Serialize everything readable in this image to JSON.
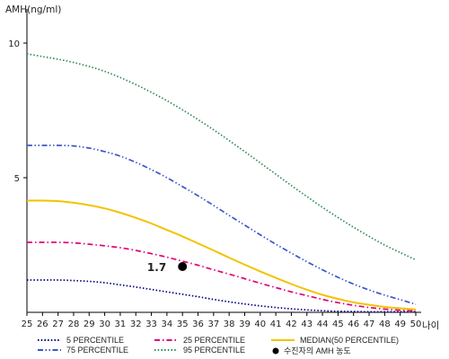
{
  "chart_data": {
    "type": "line",
    "title": "",
    "ylabel": "AMH(ng/ml)",
    "xlabel": "나이",
    "x": [
      25,
      26,
      27,
      28,
      29,
      30,
      31,
      32,
      33,
      34,
      35,
      36,
      37,
      38,
      39,
      40,
      41,
      42,
      43,
      44,
      45,
      46,
      47,
      48,
      49,
      50
    ],
    "xlim": [
      25,
      50
    ],
    "ylim": [
      0,
      11
    ],
    "yticks": [
      5,
      10
    ],
    "grid": false,
    "series": [
      {
        "name": "5 PERCENTILE",
        "color": "#000080",
        "dash": "dotted",
        "values": [
          1.2,
          1.2,
          1.2,
          1.18,
          1.15,
          1.1,
          1.02,
          0.94,
          0.85,
          0.76,
          0.67,
          0.58,
          0.48,
          0.39,
          0.31,
          0.24,
          0.18,
          0.13,
          0.09,
          0.06,
          0.04,
          0.03,
          0.02,
          0.02,
          0.02,
          0.02
        ]
      },
      {
        "name": "25 PERCENTILE",
        "color": "#e0007a",
        "dash": "dashdot",
        "values": [
          2.6,
          2.6,
          2.6,
          2.58,
          2.53,
          2.47,
          2.4,
          2.3,
          2.18,
          2.05,
          1.9,
          1.75,
          1.58,
          1.42,
          1.25,
          1.08,
          0.92,
          0.76,
          0.62,
          0.48,
          0.36,
          0.26,
          0.18,
          0.12,
          0.08,
          0.05
        ]
      },
      {
        "name": "MEDIAN(50 PERCENTILE)",
        "color": "#f2c300",
        "dash": "solid",
        "values": [
          4.15,
          4.15,
          4.13,
          4.07,
          3.98,
          3.86,
          3.7,
          3.51,
          3.3,
          3.06,
          2.82,
          2.56,
          2.3,
          2.03,
          1.77,
          1.52,
          1.28,
          1.05,
          0.84,
          0.65,
          0.5,
          0.37,
          0.28,
          0.2,
          0.15,
          0.11
        ]
      },
      {
        "name": "75 PERCENTILE",
        "color": "#3a56c8",
        "dash": "dashdotdot",
        "values": [
          6.2,
          6.2,
          6.2,
          6.18,
          6.1,
          5.97,
          5.8,
          5.57,
          5.3,
          5.0,
          4.67,
          4.33,
          3.97,
          3.6,
          3.24,
          2.88,
          2.53,
          2.2,
          1.88,
          1.58,
          1.3,
          1.05,
          0.83,
          0.64,
          0.47,
          0.3
        ]
      },
      {
        "name": "95 PERCENTILE",
        "color": "#2e8b57",
        "dash": "dotted",
        "values": [
          9.6,
          9.5,
          9.4,
          9.28,
          9.13,
          8.95,
          8.72,
          8.46,
          8.17,
          7.86,
          7.52,
          7.16,
          6.78,
          6.38,
          5.97,
          5.55,
          5.13,
          4.71,
          4.3,
          3.9,
          3.52,
          3.16,
          2.82,
          2.5,
          2.22,
          1.95
        ]
      }
    ],
    "markers": [
      {
        "name": "수진자의 AMH 농도",
        "x": 35,
        "y": 1.7,
        "label": "1.7",
        "color": "#000000"
      }
    ]
  },
  "legend": {
    "items": [
      {
        "name": "5 PERCENTILE",
        "color": "#000080",
        "dash": "dotted"
      },
      {
        "name": "25 PERCENTILE",
        "color": "#e0007a",
        "dash": "dashdot"
      },
      {
        "name": "MEDIAN(50 PERCENTILE)",
        "color": "#f2c300",
        "dash": "solid"
      },
      {
        "name": "75 PERCENTILE",
        "color": "#3a56c8",
        "dash": "dashdotdot"
      },
      {
        "name": "95 PERCENTILE",
        "color": "#2e8b57",
        "dash": "dotted"
      },
      {
        "name": "수진자의 AMH 농도",
        "color": "#000000",
        "dash": "marker"
      }
    ]
  }
}
